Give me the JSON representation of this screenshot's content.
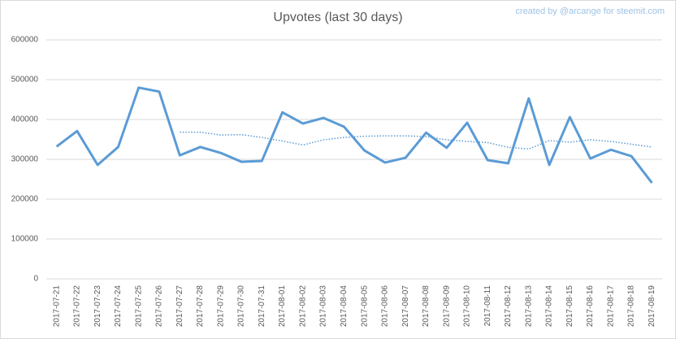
{
  "chart_data": {
    "type": "line",
    "title": "Upvotes (last 30 days)",
    "annotation": "created by @arcange for steemit.com",
    "categories": [
      "2017-07-21",
      "2017-07-22",
      "2017-07-23",
      "2017-07-24",
      "2017-07-25",
      "2017-07-26",
      "2017-07-27",
      "2017-07-28",
      "2017-07-29",
      "2017-07-30",
      "2017-07-31",
      "2017-08-01",
      "2017-08-02",
      "2017-08-03",
      "2017-08-04",
      "2017-08-05",
      "2017-08-06",
      "2017-08-07",
      "2017-08-08",
      "2017-08-09",
      "2017-08-10",
      "2017-08-11",
      "2017-08-12",
      "2017-08-13",
      "2017-08-14",
      "2017-08-15",
      "2017-08-16",
      "2017-08-17",
      "2017-08-18",
      "2017-08-19"
    ],
    "series": [
      {
        "color": "#5b9bd5",
        "style": "solid",
        "values": [
          332000,
          371000,
          286000,
          331000,
          480000,
          470000,
          310000,
          331000,
          316000,
          294000,
          296000,
          418000,
          390000,
          404000,
          382000,
          322000,
          292000,
          304000,
          367000,
          329000,
          392000,
          298000,
          290000,
          453000,
          286000,
          406000,
          302000,
          324000,
          308000,
          241000
        ]
      },
      {
        "color": "#5b9bd5",
        "style": "dotted",
        "values": [
          null,
          null,
          null,
          null,
          null,
          null,
          368000,
          368000,
          361000,
          362000,
          355000,
          346000,
          336000,
          349000,
          355000,
          358000,
          359000,
          359000,
          357000,
          349000,
          345000,
          342000,
          330000,
          326000,
          347000,
          343000,
          349000,
          345000,
          338000,
          331000
        ]
      }
    ],
    "ylim": [
      0,
      600000
    ],
    "yticks": [
      0,
      100000,
      200000,
      300000,
      400000,
      500000,
      600000
    ],
    "grid": true
  }
}
